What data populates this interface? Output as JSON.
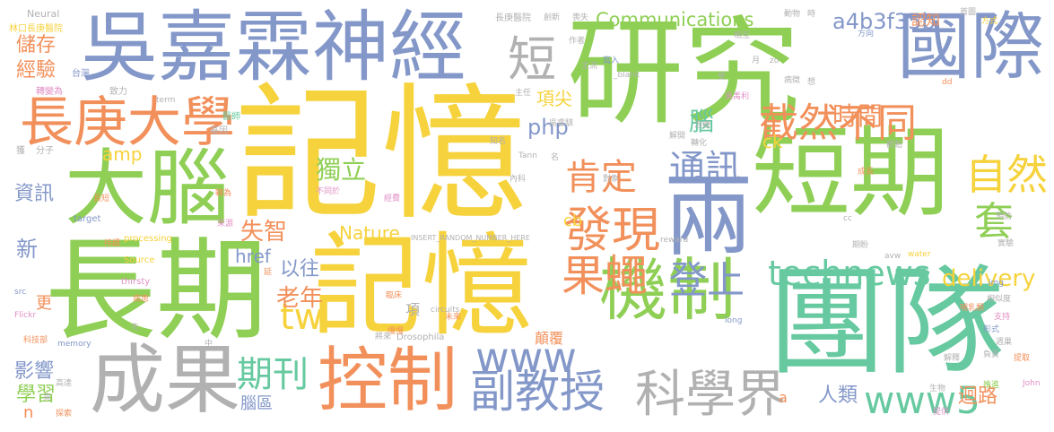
{
  "colors": {
    "background": "#ffffff",
    "green": "#8fcf55",
    "yellow": "#f6d23c",
    "orange": "#f2905b",
    "blue": "#8397c9",
    "teal": "#67c9a0",
    "pink": "#e190c6",
    "gray": "#b1b1b1"
  },
  "words": [
    {
      "text": "記憶",
      "color": "#f6d23c"
    },
    {
      "text": "研究",
      "color": "#8fcf55"
    },
    {
      "text": "長期",
      "color": "#8fcf55"
    },
    {
      "text": "記憶",
      "color": "#f6d23c"
    },
    {
      "text": "團隊",
      "color": "#67c9a0"
    },
    {
      "text": "短期",
      "color": "#8fcf55"
    },
    {
      "text": "吳嘉霖神經",
      "color": "#8397c9"
    },
    {
      "text": "國際",
      "color": "#8397c9"
    },
    {
      "text": "大腦",
      "color": "#8fcf55"
    },
    {
      "text": "長庚大學",
      "color": "#f2905b"
    },
    {
      "text": "成果",
      "color": "#b1b1b1"
    },
    {
      "text": "控制",
      "color": "#f2905b"
    },
    {
      "text": "機制",
      "color": "#8fcf55"
    },
    {
      "text": "兩",
      "color": "#8397c9"
    },
    {
      "text": "果蠅",
      "color": "#f2905b"
    },
    {
      "text": "發現",
      "color": "#f2905b"
    },
    {
      "text": "截然不同",
      "color": "#f2905b"
    },
    {
      "text": "科學界",
      "color": "#b1b1b1"
    },
    {
      "text": "副教授",
      "color": "#8397c9"
    },
    {
      "text": "www5",
      "color": "#67c9a0"
    },
    {
      "text": "technews",
      "color": "#67c9a0"
    },
    {
      "text": "www",
      "color": "#8397c9"
    },
    {
      "text": "肯定",
      "color": "#f2905b"
    },
    {
      "text": "通訊",
      "color": "#8397c9"
    },
    {
      "text": "自然",
      "color": "#f6d23c"
    },
    {
      "text": "套",
      "color": "#8fcf55"
    },
    {
      "text": "登上",
      "color": "#8397c9"
    },
    {
      "text": "期刊",
      "color": "#67c9a0"
    },
    {
      "text": "短",
      "color": "#b1b1b1"
    },
    {
      "text": "時間",
      "color": "#f2905b"
    },
    {
      "text": "a4b3f35b",
      "color": "#8397c9"
    },
    {
      "text": "Communications",
      "color": "#8fcf55"
    },
    {
      "text": "delivery",
      "color": "#f6d23c"
    },
    {
      "text": "tw",
      "color": "#f6d23c"
    },
    {
      "text": "php",
      "color": "#8397c9"
    },
    {
      "text": "獨立",
      "color": "#8fcf55"
    },
    {
      "text": "失智",
      "color": "#f2905b"
    },
    {
      "text": "老年",
      "color": "#f2905b"
    },
    {
      "text": "以往",
      "color": "#8397c9"
    },
    {
      "text": "Nature",
      "color": "#f6d23c"
    },
    {
      "text": "href",
      "color": "#8397c9"
    },
    {
      "text": "人類",
      "color": "#8397c9"
    },
    {
      "text": "迴路",
      "color": "#f2905b"
    },
    {
      "text": "項尖",
      "color": "#f6d23c"
    },
    {
      "text": "腦",
      "color": "#67c9a0"
    },
    {
      "text": "ck",
      "color": "#f6d23c"
    },
    {
      "text": "cb",
      "color": "#f6d23c"
    },
    {
      "text": "amp",
      "color": "#f6d23c"
    },
    {
      "text": "儲存",
      "color": "#f2905b"
    },
    {
      "text": "經驗",
      "color": "#f2905b"
    },
    {
      "text": "資訊",
      "color": "#8397c9"
    },
    {
      "text": "新",
      "color": "#8397c9"
    },
    {
      "text": "影響",
      "color": "#8397c9"
    },
    {
      "text": "學習",
      "color": "#8fcf55"
    },
    {
      "text": "更",
      "color": "#f2905b"
    },
    {
      "text": "n",
      "color": "#f2905b"
    },
    {
      "text": "腦區",
      "color": "#8397c9"
    },
    {
      "text": "顛覆",
      "color": "#f2905b"
    },
    {
      "text": "項",
      "color": "#b1b1b1"
    },
    {
      "text": "認知",
      "color": "#f2905b"
    },
    {
      "text": "a",
      "color": "#f2905b"
    },
    {
      "text": "Neural",
      "color": "#b1b1b1"
    },
    {
      "text": "林口長庚醫院",
      "color": "#f6d23c"
    },
    {
      "text": "長庚醫院",
      "color": "#b1b1b1"
    },
    {
      "text": "主任",
      "color": "#b1b1b1"
    },
    {
      "text": "吳睿騏",
      "color": "#b1b1b1"
    },
    {
      "text": "吳禹利",
      "color": "#e190c6"
    },
    {
      "text": "dd",
      "color": "#f2905b"
    },
    {
      "text": "_blank",
      "color": "#b1b1b1"
    },
    {
      "text": "INSERT_RANDOM_NUMBER_HERE",
      "color": "#b1b1b1"
    },
    {
      "text": "processing",
      "color": "#f6d23c"
    },
    {
      "text": "Source",
      "color": "#f6d23c"
    },
    {
      "text": "thirsty",
      "color": "#e190c6"
    },
    {
      "text": "target",
      "color": "#8397c9"
    },
    {
      "text": "memory",
      "color": "#8397c9"
    },
    {
      "text": "Drosophila",
      "color": "#b1b1b1"
    },
    {
      "text": "circuits",
      "color": "#b1b1b1"
    },
    {
      "text": "Flickr",
      "color": "#e190c6"
    },
    {
      "text": "src",
      "color": "#8397c9"
    },
    {
      "text": "term",
      "color": "#b1b1b1"
    },
    {
      "text": "reward",
      "color": "#b1b1b1"
    },
    {
      "text": "Tann",
      "color": "#b1b1b1"
    },
    {
      "text": "water",
      "color": "#f6d23c"
    },
    {
      "text": "long",
      "color": "#8397c9"
    },
    {
      "text": "img",
      "color": "#8397c9"
    },
    {
      "text": "John",
      "color": "#e190c6"
    },
    {
      "text": "avw",
      "color": "#b1b1b1"
    },
    {
      "text": "zo",
      "color": "#b1b1b1"
    },
    {
      "text": "cc",
      "color": "#b1b1b1"
    },
    {
      "text": "分子",
      "color": "#b1b1b1"
    },
    {
      "text": "獲",
      "color": "#b1b1b1"
    },
    {
      "text": "台灣",
      "color": "#8397c9"
    },
    {
      "text": "轉變為",
      "color": "#e190c6"
    },
    {
      "text": "致力",
      "color": "#b1b1b1"
    },
    {
      "text": "醫師",
      "color": "#67c9a0"
    },
    {
      "text": "基因",
      "color": "#b1b1b1"
    },
    {
      "text": "知名",
      "color": "#b1b1b1"
    },
    {
      "text": "內科",
      "color": "#b1b1b1"
    },
    {
      "text": "名",
      "color": "#b1b1b1"
    },
    {
      "text": "長短",
      "color": "#f2905b"
    },
    {
      "text": "轉為",
      "color": "#f2905b"
    },
    {
      "text": "不同於",
      "color": "#e190c6"
    },
    {
      "text": "經費",
      "color": "#e190c6"
    },
    {
      "text": "來源",
      "color": "#e190c6"
    },
    {
      "text": "持續",
      "color": "#f2905b"
    },
    {
      "text": "病患",
      "color": "#f2905b"
    },
    {
      "text": "延",
      "color": "#f2905b"
    },
    {
      "text": "慢慢",
      "color": "#f2905b"
    },
    {
      "text": "臨床",
      "color": "#f2905b"
    },
    {
      "text": "未來",
      "color": "#f2905b"
    },
    {
      "text": "將來",
      "color": "#b1b1b1"
    },
    {
      "text": "先",
      "color": "#b1b1b1"
    },
    {
      "text": "中",
      "color": "#b1b1b1"
    },
    {
      "text": "高達",
      "color": "#b1b1b1"
    },
    {
      "text": "探索",
      "color": "#f2905b"
    },
    {
      "text": "竟",
      "color": "#b1b1b1"
    },
    {
      "text": "科技部",
      "color": "#f2905b"
    },
    {
      "text": "創新",
      "color": "#b1b1b1"
    },
    {
      "text": "喪失",
      "color": "#b1b1b1"
    },
    {
      "text": "動物",
      "color": "#b1b1b1"
    },
    {
      "text": "首圖",
      "color": "#b1b1b1"
    },
    {
      "text": "時",
      "color": "#b1b1b1"
    },
    {
      "text": "方式",
      "color": "#f6d23c"
    },
    {
      "text": "方向",
      "color": "#8397c9"
    },
    {
      "text": "相互",
      "color": "#b1b1b1"
    },
    {
      "text": "作者",
      "color": "#b1b1b1"
    },
    {
      "text": "寫入",
      "color": "#8397c9"
    },
    {
      "text": "主流",
      "color": "#b1b1b1"
    },
    {
      "text": "受",
      "color": "#b1b1b1"
    },
    {
      "text": "病徵",
      "color": "#b1b1b1"
    },
    {
      "text": "想",
      "color": "#b1b1b1"
    },
    {
      "text": "治療",
      "color": "#b1b1b1"
    },
    {
      "text": "解開",
      "color": "#b1b1b1"
    },
    {
      "text": "轉化",
      "color": "#b1b1b1"
    },
    {
      "text": "觀點",
      "color": "#b1b1b1"
    },
    {
      "text": "成長",
      "color": "#f2905b"
    },
    {
      "text": "預防",
      "color": "#b1b1b1"
    },
    {
      "text": "實驗",
      "color": "#b1b1b1"
    },
    {
      "text": "期盼",
      "color": "#b1b1b1"
    },
    {
      "text": "哺乳類",
      "color": "#f2905b"
    },
    {
      "text": "相似度",
      "color": "#b1b1b1"
    },
    {
      "text": "支持",
      "color": "#e190c6"
    },
    {
      "text": "形式",
      "color": "#8397c9"
    },
    {
      "text": "週巢",
      "color": "#b1b1b1"
    },
    {
      "text": "負責",
      "color": "#b1b1b1"
    },
    {
      "text": "提取",
      "color": "#f2905b"
    },
    {
      "text": "推進",
      "color": "#8fcf55"
    },
    {
      "text": "生物",
      "color": "#b1b1b1"
    },
    {
      "text": "提供",
      "color": "#e190c6"
    },
    {
      "text": "解釋",
      "color": "#b1b1b1"
    },
    {
      "text": "月",
      "color": "#b1b1b1"
    },
    {
      "text": "對象",
      "color": "#b1b1b1"
    }
  ]
}
